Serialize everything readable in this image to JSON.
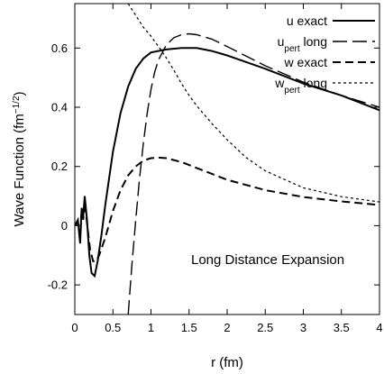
{
  "chart_data": {
    "type": "line",
    "xlabel": "r (fm)",
    "ylabel": "Wave Function (fm",
    "ylabel_sup": "−1/2",
    "ylabel_close": ")",
    "annotation": "Long Distance Expansion",
    "xlim": [
      0,
      4
    ],
    "ylim": [
      -0.3,
      0.75
    ],
    "x_ticks": [
      0,
      0.5,
      1,
      1.5,
      2,
      2.5,
      3,
      3.5,
      4
    ],
    "x_tick_labels": [
      "0",
      "0.5",
      "1",
      "1.5",
      "2",
      "2.5",
      "3",
      "3.5",
      "4"
    ],
    "y_ticks": [
      -0.2,
      0,
      0.2,
      0.4,
      0.6
    ],
    "y_tick_labels": [
      "-0.2",
      "0",
      "0.2",
      "0.4",
      "0.6"
    ],
    "grid": false,
    "legend_position": "top-right",
    "series": [
      {
        "name": "u exact",
        "legend_main": "u exact",
        "legend_sub": "",
        "legend_tail": "",
        "style": "solid",
        "x": [
          0,
          0.04,
          0.07,
          0.09,
          0.11,
          0.13,
          0.16,
          0.19,
          0.22,
          0.26,
          0.3,
          0.35,
          0.4,
          0.5,
          0.6,
          0.7,
          0.8,
          0.9,
          1.0,
          1.2,
          1.4,
          1.6,
          1.8,
          2.0,
          2.5,
          3.0,
          3.5,
          4.0
        ],
        "y": [
          0,
          0.02,
          -0.06,
          0.06,
          0.03,
          0.1,
          0.02,
          -0.1,
          -0.16,
          -0.17,
          -0.12,
          -0.03,
          0.07,
          0.25,
          0.38,
          0.47,
          0.53,
          0.565,
          0.585,
          0.595,
          0.6,
          0.6,
          0.59,
          0.575,
          0.53,
          0.48,
          0.44,
          0.39
        ]
      },
      {
        "name": "u_pert long",
        "legend_main": "u",
        "legend_sub": "pert",
        "legend_tail": " long",
        "style": "long-dash",
        "x": [
          0.7,
          0.75,
          0.8,
          0.85,
          0.9,
          0.95,
          1.0,
          1.05,
          1.1,
          1.2,
          1.3,
          1.4,
          1.5,
          1.6,
          1.8,
          2.0,
          2.5,
          3.0,
          3.5,
          4.0
        ],
        "y": [
          -0.3,
          -0.13,
          0.02,
          0.16,
          0.28,
          0.38,
          0.46,
          0.52,
          0.56,
          0.61,
          0.635,
          0.645,
          0.648,
          0.645,
          0.63,
          0.605,
          0.54,
          0.485,
          0.44,
          0.4
        ]
      },
      {
        "name": "w exact",
        "legend_main": "w exact",
        "legend_sub": "",
        "legend_tail": "",
        "style": "dash",
        "x": [
          0,
          0.04,
          0.07,
          0.09,
          0.11,
          0.13,
          0.16,
          0.2,
          0.24,
          0.28,
          0.32,
          0.4,
          0.5,
          0.6,
          0.7,
          0.8,
          0.9,
          1.0,
          1.1,
          1.2,
          1.4,
          1.6,
          1.8,
          2.0,
          2.5,
          3.0,
          3.5,
          4.0
        ],
        "y": [
          0,
          0.01,
          -0.04,
          0.05,
          0.02,
          0.08,
          0.01,
          -0.08,
          -0.12,
          -0.12,
          -0.1,
          -0.04,
          0.05,
          0.12,
          0.17,
          0.2,
          0.22,
          0.228,
          0.23,
          0.228,
          0.215,
          0.195,
          0.175,
          0.155,
          0.12,
          0.097,
          0.082,
          0.07
        ]
      },
      {
        "name": "w_pert long",
        "legend_main": "w",
        "legend_sub": "pert",
        "legend_tail": " long",
        "style": "short-dash",
        "x": [
          0.7,
          0.75,
          0.8,
          0.85,
          0.9,
          0.95,
          1.0,
          1.05,
          1.1,
          1.2,
          1.3,
          1.4,
          1.5,
          1.6,
          1.8,
          2.0,
          2.25,
          2.5,
          3.0,
          3.5,
          4.0
        ],
        "y": [
          0.75,
          0.73,
          0.71,
          0.69,
          0.67,
          0.655,
          0.64,
          0.622,
          0.605,
          0.567,
          0.525,
          0.48,
          0.44,
          0.405,
          0.345,
          0.29,
          0.23,
          0.185,
          0.128,
          0.098,
          0.08
        ]
      }
    ]
  }
}
